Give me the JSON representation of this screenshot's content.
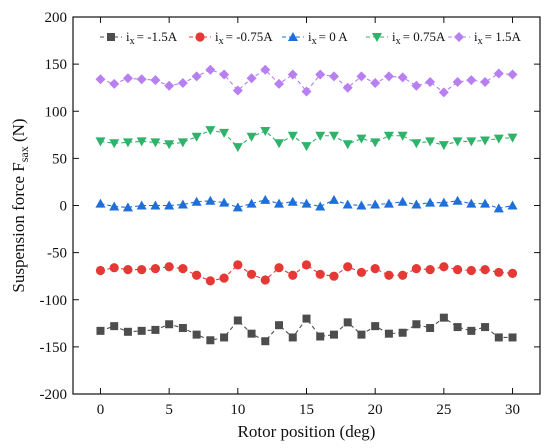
{
  "chart_data": {
    "type": "line",
    "xlabel": "Rotor position (deg)",
    "ylabel_main": "Suspension force F",
    "ylabel_sub": "sax",
    "ylabel_unit": " (N)",
    "xlim": [
      -2,
      32
    ],
    "ylim": [
      -200,
      200
    ],
    "xticks": [
      0,
      5,
      10,
      15,
      20,
      25,
      30
    ],
    "yticks": [
      -200,
      -150,
      -100,
      -50,
      0,
      50,
      100,
      150,
      200
    ],
    "grid": false,
    "legend_position": "top",
    "x": [
      0,
      1,
      2,
      3,
      4,
      5,
      6,
      7,
      8,
      9,
      10,
      11,
      12,
      13,
      14,
      15,
      16,
      17,
      18,
      19,
      20,
      21,
      22,
      23,
      24,
      25,
      26,
      27,
      28,
      29,
      30
    ],
    "series": [
      {
        "name": "i",
        "name_sub": "x",
        "name_rest": "= -1.5A",
        "color": "#4d4d4d",
        "marker": "square",
        "values": [
          -133,
          -128,
          -134,
          -133,
          -132,
          -126,
          -130,
          -137,
          -143,
          -140,
          -122,
          -136,
          -144,
          -127,
          -140,
          -120,
          -139,
          -137,
          -124,
          -137,
          -128,
          -136,
          -135,
          -126,
          -130,
          -119,
          -129,
          -133,
          -129,
          -140,
          -140
        ]
      },
      {
        "name": "i",
        "name_sub": "x",
        "name_rest": "= -0.75A",
        "color": "#e53935",
        "marker": "circle",
        "values": [
          -69,
          -66,
          -68,
          -68,
          -67,
          -65,
          -67,
          -74,
          -80,
          -77,
          -63,
          -73,
          -79,
          -66,
          -74,
          -63,
          -73,
          -75,
          -65,
          -71,
          -67,
          -74,
          -74,
          -67,
          -68,
          -65,
          -68,
          -69,
          -68,
          -71,
          -72
        ]
      },
      {
        "name": "i",
        "name_sub": "x",
        "name_rest": "= 0 A",
        "color": "#1e6fd9",
        "marker": "triangle-up",
        "values": [
          2,
          -1,
          -2,
          0,
          0,
          0,
          1,
          4,
          5,
          3,
          -2,
          2,
          6,
          2,
          4,
          2,
          -1,
          6,
          1,
          0,
          1,
          2,
          4,
          1,
          3,
          3,
          5,
          2,
          2,
          -3,
          0
        ]
      },
      {
        "name": "i",
        "name_sub": "x",
        "name_rest": "= 0.75A",
        "color": "#2fb36a",
        "marker": "triangle-down",
        "values": [
          68,
          66,
          67,
          68,
          67,
          65,
          67,
          73,
          80,
          77,
          62,
          73,
          79,
          66,
          74,
          63,
          74,
          74,
          65,
          71,
          67,
          74,
          74,
          66,
          68,
          64,
          68,
          68,
          69,
          71,
          72
        ]
      },
      {
        "name": "i",
        "name_sub": "x",
        "name_rest": "= 1.5A",
        "color": "#b77ff0",
        "marker": "diamond",
        "values": [
          134,
          129,
          135,
          134,
          133,
          127,
          130,
          137,
          144,
          139,
          122,
          135,
          144,
          129,
          139,
          121,
          139,
          137,
          125,
          137,
          130,
          137,
          136,
          127,
          131,
          120,
          131,
          133,
          131,
          140,
          139
        ]
      }
    ]
  }
}
